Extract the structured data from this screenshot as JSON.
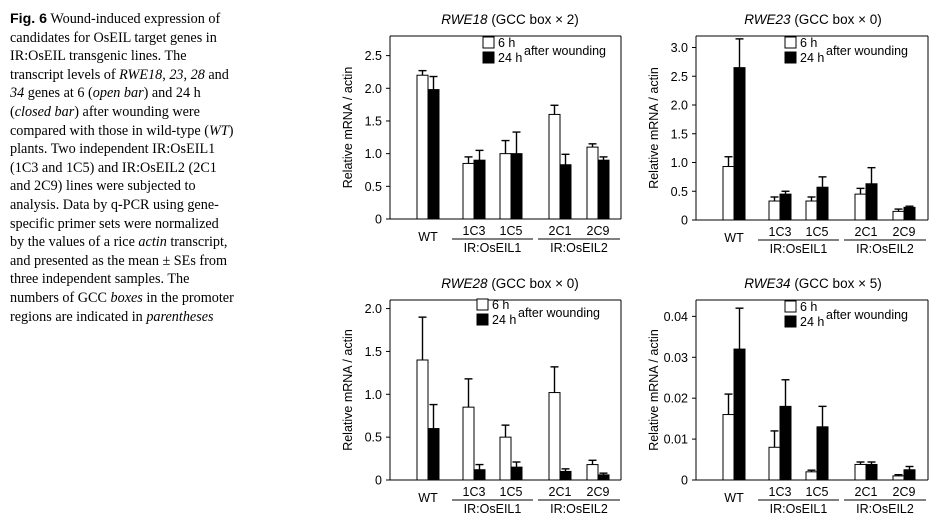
{
  "caption": {
    "parts": [
      {
        "t": "Fig. 6",
        "s": "b"
      },
      {
        "t": "  Wound-induced expression of candidates for OsEIL target genes in IR:OsEIL transgenic lines. The transcript levels of "
      },
      {
        "t": "RWE18",
        "s": "i"
      },
      {
        "t": ", "
      },
      {
        "t": "23",
        "s": "i"
      },
      {
        "t": ", "
      },
      {
        "t": "28",
        "s": "i"
      },
      {
        "t": " and "
      },
      {
        "t": "34",
        "s": "i"
      },
      {
        "t": " genes at 6 ("
      },
      {
        "t": "open bar",
        "s": "i"
      },
      {
        "t": ") and 24 h ("
      },
      {
        "t": "closed bar",
        "s": "i"
      },
      {
        "t": ") after wounding were compared with those in wild-type ("
      },
      {
        "t": "WT",
        "s": "i"
      },
      {
        "t": ") plants. Two independent IR:OsEIL1 (1C3 and 1C5) and IR:OsEIL2 (2C1 and 2C9) lines were subjected to analysis. Data by q-PCR using gene-specific primer sets were normalized by the values of a rice "
      },
      {
        "t": "actin",
        "s": "i"
      },
      {
        "t": " transcript, and presented as the mean ± SEs from three independent samples. The numbers of GCC "
      },
      {
        "t": "boxes",
        "s": "i"
      },
      {
        "t": " in the promoter regions are indicated in "
      },
      {
        "t": "parentheses",
        "s": "i"
      }
    ]
  },
  "chart_data": [
    {
      "type": "bar",
      "title_gene": "RWE18",
      "title_rest": " (GCC box × 2)",
      "ylabel": "Relative mRNA / actin",
      "ylim": [
        0,
        2.8
      ],
      "yticks": [
        "0",
        "0.5",
        "1.0",
        "1.5",
        "2.0",
        "2.5"
      ],
      "ytick_values": [
        0,
        0.5,
        1.0,
        1.5,
        2.0,
        2.5
      ],
      "categories": [
        "WT",
        "1C3",
        "1C5",
        "2C1",
        "2C9"
      ],
      "groups": [
        "IR:OsEIL1",
        "IR:OsEIL2"
      ],
      "legend": [
        "6 h",
        "24 h"
      ],
      "legend_note": "after wounding",
      "series": [
        {
          "name": "6 h",
          "values": [
            2.2,
            0.85,
            1.0,
            1.6,
            1.1
          ],
          "err": [
            0.07,
            0.1,
            0.2,
            0.14,
            0.05
          ]
        },
        {
          "name": "24 h",
          "values": [
            1.98,
            0.9,
            1.0,
            0.83,
            0.9
          ],
          "err": [
            0.2,
            0.15,
            0.33,
            0.16,
            0.05
          ]
        }
      ]
    },
    {
      "type": "bar",
      "title_gene": "RWE23",
      "title_rest": " (GCC box × 0)",
      "ylabel": "Relative mRNA / actin",
      "ylim": [
        0,
        3.2
      ],
      "yticks": [
        "0",
        "0.5",
        "1.0",
        "1.5",
        "2.0",
        "2.5",
        "3.0"
      ],
      "ytick_values": [
        0,
        0.5,
        1.0,
        1.5,
        2.0,
        2.5,
        3.0
      ],
      "categories": [
        "WT",
        "1C3",
        "1C5",
        "2C1",
        "2C9"
      ],
      "groups": [
        "IR:OsEIL1",
        "IR:OsEIL2"
      ],
      "legend": [
        "6 h",
        "24 h"
      ],
      "legend_note": "after wounding",
      "series": [
        {
          "name": "6 h",
          "values": [
            0.93,
            0.33,
            0.33,
            0.45,
            0.15
          ],
          "err": [
            0.17,
            0.07,
            0.07,
            0.1,
            0.04
          ]
        },
        {
          "name": "24 h",
          "values": [
            2.65,
            0.45,
            0.57,
            0.63,
            0.22
          ],
          "err": [
            0.5,
            0.05,
            0.18,
            0.28,
            0.02
          ]
        }
      ]
    },
    {
      "type": "bar",
      "title_gene": "RWE28",
      "title_rest": " (GCC box × 0)",
      "ylabel": "Relative mRNA / actin",
      "ylim": [
        0,
        2.1
      ],
      "yticks": [
        "0",
        "0.5",
        "1.0",
        "1.5",
        "2.0"
      ],
      "ytick_values": [
        0,
        0.5,
        1.0,
        1.5,
        2.0
      ],
      "categories": [
        "WT",
        "1C3",
        "1C5",
        "2C1",
        "2C9"
      ],
      "groups": [
        "IR:OsEIL1",
        "IR:OsEIL2"
      ],
      "legend": [
        "6 h",
        "24 h"
      ],
      "legend_note": "after wounding",
      "series": [
        {
          "name": "6 h",
          "values": [
            1.4,
            0.85,
            0.5,
            1.02,
            0.18
          ],
          "err": [
            0.5,
            0.33,
            0.14,
            0.3,
            0.05
          ]
        },
        {
          "name": "24 h",
          "values": [
            0.6,
            0.12,
            0.15,
            0.1,
            0.06
          ],
          "err": [
            0.28,
            0.06,
            0.06,
            0.03,
            0.02
          ]
        }
      ]
    },
    {
      "type": "bar",
      "title_gene": "RWE34",
      "title_rest": " (GCC box × 5)",
      "ylabel": "Relative mRNA / actin",
      "ylim": [
        0,
        0.044
      ],
      "yticks": [
        "0",
        "0.01",
        "0.02",
        "0.03",
        "0.04"
      ],
      "ytick_values": [
        0,
        0.01,
        0.02,
        0.03,
        0.04
      ],
      "categories": [
        "WT",
        "1C3",
        "1C5",
        "2C1",
        "2C9"
      ],
      "groups": [
        "IR:OsEIL1",
        "IR:OsEIL2"
      ],
      "legend": [
        "6 h",
        "24 h"
      ],
      "legend_note": "after wounding",
      "series": [
        {
          "name": "6 h",
          "values": [
            0.016,
            0.008,
            0.002,
            0.0038,
            0.001
          ],
          "err": [
            0.005,
            0.004,
            0.0004,
            0.0006,
            0.0003
          ]
        },
        {
          "name": "24 h",
          "values": [
            0.032,
            0.018,
            0.013,
            0.0038,
            0.0025
          ],
          "err": [
            0.01,
            0.0065,
            0.005,
            0.0006,
            0.0008
          ]
        }
      ]
    }
  ]
}
